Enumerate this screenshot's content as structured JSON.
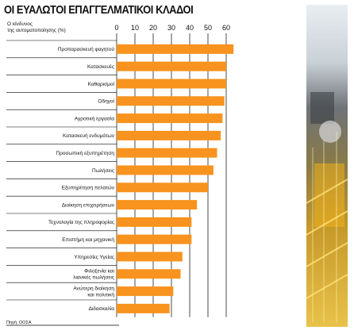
{
  "chart_data": {
    "type": "bar",
    "orientation": "horizontal",
    "title": "ΟΙ ΕΥΑΛΩΤΟΙ ΕΠΑΓΓΕΛΜΑΤΙΚΟΙ ΚΛΑΔΟΙ",
    "subtitle_lines": [
      "Ο κίνδυνος",
      "της αυτοματοποίησης (%)"
    ],
    "source": "Πηγή: ΟΟΣΑ",
    "xlim": [
      0,
      65
    ],
    "xticks": [
      0,
      10,
      20,
      30,
      40,
      50,
      60
    ],
    "grid": true,
    "bar_color": "#f7931e",
    "categories": [
      [
        "Προπαρασκευή φαγητού"
      ],
      [
        "Κατασκευές"
      ],
      [
        "Καθαρισμοί"
      ],
      [
        "Οδηγοί"
      ],
      [
        "Αγροτική εργασία"
      ],
      [
        "Κατασκευή ενδυμάτων"
      ],
      [
        "Προσωπική εξυπηρέτηση"
      ],
      [
        "Πωλήσεις"
      ],
      [
        "Εξυπηρέτηση πελατών"
      ],
      [
        "Διοίκηση επιχειρήσεων"
      ],
      [
        "Τεχνολογία της πληροφορίας"
      ],
      [
        "Επιστήμη και μηχανική"
      ],
      [
        "Υπηρεσίες Υγείας"
      ],
      [
        "Φιλοξενία και",
        "λιανικές πωλήσεις"
      ],
      [
        "Ανώτερη διοίκηση",
        "και πολιτική"
      ],
      [
        "Διδασκαλία"
      ]
    ],
    "values": [
      64,
      60,
      60,
      59,
      58,
      57,
      55,
      53,
      50,
      44,
      41,
      41,
      36,
      35,
      31,
      29
    ]
  }
}
